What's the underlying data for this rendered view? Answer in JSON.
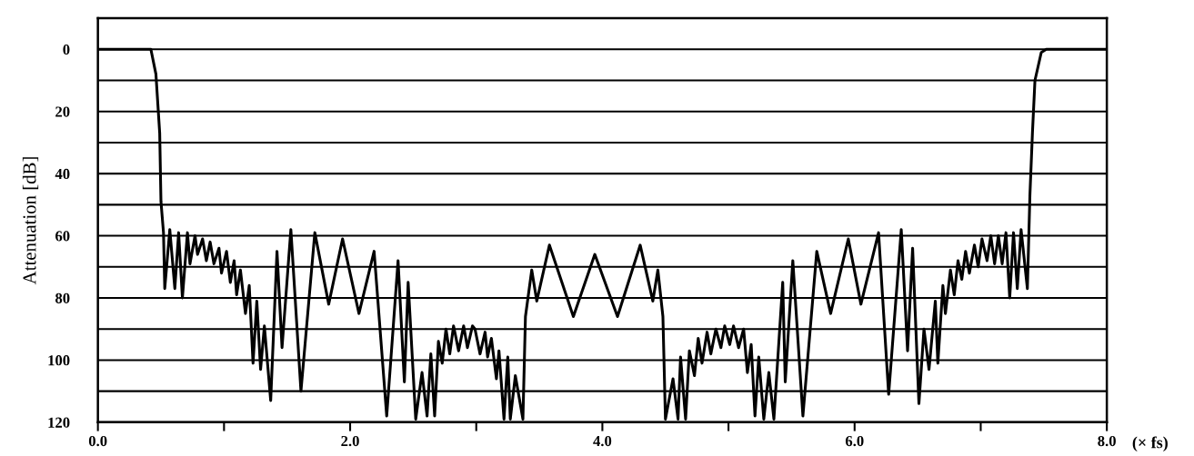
{
  "chart_data": {
    "type": "line",
    "ylabel": "Attenuation [dB]",
    "xlabel": "(× fs)",
    "xlim": [
      0,
      8
    ],
    "ylim": [
      120,
      -10
    ],
    "xticks": [
      {
        "value": 0,
        "label": "0.0"
      },
      {
        "value": 1,
        "label": null
      },
      {
        "value": 2,
        "label": "2.0"
      },
      {
        "value": 3,
        "label": null
      },
      {
        "value": 4,
        "label": "4.0"
      },
      {
        "value": 5,
        "label": null
      },
      {
        "value": 6,
        "label": "6.0"
      },
      {
        "value": 7,
        "label": null
      },
      {
        "value": 8,
        "label": "8.0"
      }
    ],
    "yticks": [
      0,
      {
        "value": 10,
        "label": null
      },
      20,
      {
        "value": 30,
        "label": null
      },
      40,
      {
        "value": 50,
        "label": null
      },
      60,
      {
        "value": 70,
        "label": null
      },
      80,
      {
        "value": 90,
        "label": null
      },
      100,
      {
        "value": 110,
        "label": null
      },
      120
    ],
    "grid": "y",
    "marker": "none",
    "line_style": "solid",
    "series": [
      {
        "color": "#000000",
        "x": [
          0,
          0.42,
          0.46,
          0.49,
          0.5,
          0.52,
          0.53,
          0.57,
          0.61,
          0.64,
          0.67,
          0.71,
          0.73,
          0.77,
          0.79,
          0.83,
          0.86,
          0.89,
          0.92,
          0.96,
          0.98,
          1.02,
          1.05,
          1.08,
          1.1,
          1.13,
          1.17,
          1.2,
          1.23,
          1.26,
          1.29,
          1.32,
          1.37,
          1.42,
          1.46,
          1.53,
          1.61,
          1.72,
          1.83,
          1.94,
          2.07,
          2.19,
          2.29,
          2.38,
          2.43,
          2.46,
          2.52,
          2.57,
          2.61,
          2.64,
          2.67,
          2.7,
          2.73,
          2.76,
          2.79,
          2.82,
          2.86,
          2.9,
          2.93,
          2.97,
          2.99,
          3.03,
          3.07,
          3.09,
          3.12,
          3.16,
          3.18,
          3.22,
          3.25,
          3.27,
          3.31,
          3.37,
          3.39,
          3.44,
          3.48,
          3.58,
          3.77,
          3.94,
          4.12,
          4.3,
          4.4,
          4.44,
          4.48,
          4.5,
          4.56,
          4.6,
          4.62,
          4.66,
          4.69,
          4.73,
          4.76,
          4.79,
          4.83,
          4.86,
          4.9,
          4.94,
          4.97,
          5.01,
          5.04,
          5.08,
          5.12,
          5.15,
          5.18,
          5.21,
          5.24,
          5.28,
          5.32,
          5.36,
          5.43,
          5.45,
          5.51,
          5.59,
          5.7,
          5.81,
          5.95,
          6.05,
          6.19,
          6.27,
          6.37,
          6.42,
          6.46,
          6.51,
          6.55,
          6.59,
          6.64,
          6.66,
          6.7,
          6.72,
          6.76,
          6.79,
          6.82,
          6.85,
          6.88,
          6.91,
          6.95,
          6.98,
          7.01,
          7.05,
          7.08,
          7.11,
          7.14,
          7.17,
          7.2,
          7.23,
          7.26,
          7.29,
          7.32,
          7.37,
          7.39,
          7.41,
          7.43,
          7.48,
          7.52,
          8.0
        ],
        "values": [
          0,
          0,
          8,
          27,
          49,
          59,
          77,
          58,
          77,
          59,
          80,
          59,
          69,
          60,
          66,
          61,
          68,
          62,
          69,
          64,
          72,
          65,
          75,
          68,
          79,
          71,
          85,
          76,
          101,
          81,
          103,
          89,
          113,
          65,
          96,
          58,
          110,
          59,
          82,
          61,
          85,
          65,
          118,
          68,
          107,
          75,
          119,
          104,
          118,
          98,
          118,
          94,
          101,
          90,
          98,
          89,
          97,
          89,
          96,
          89,
          90,
          98,
          91,
          99,
          93,
          106,
          97,
          119,
          99,
          119,
          105,
          119,
          86,
          71,
          81,
          63,
          86,
          66,
          86,
          63,
          81,
          71,
          86,
          119,
          106,
          119,
          99,
          119,
          97,
          105,
          93,
          101,
          91,
          98,
          90,
          96,
          89,
          95,
          89,
          96,
          90,
          104,
          95,
          118,
          99,
          119,
          104,
          119,
          75,
          107,
          68,
          118,
          65,
          85,
          61,
          82,
          59,
          111,
          58,
          97,
          64,
          114,
          90,
          103,
          81,
          101,
          76,
          85,
          71,
          79,
          68,
          74,
          65,
          72,
          63,
          70,
          61,
          68,
          60,
          69,
          60,
          69,
          59,
          80,
          59,
          77,
          58,
          77,
          47,
          27,
          10,
          1,
          0,
          0
        ]
      }
    ]
  }
}
